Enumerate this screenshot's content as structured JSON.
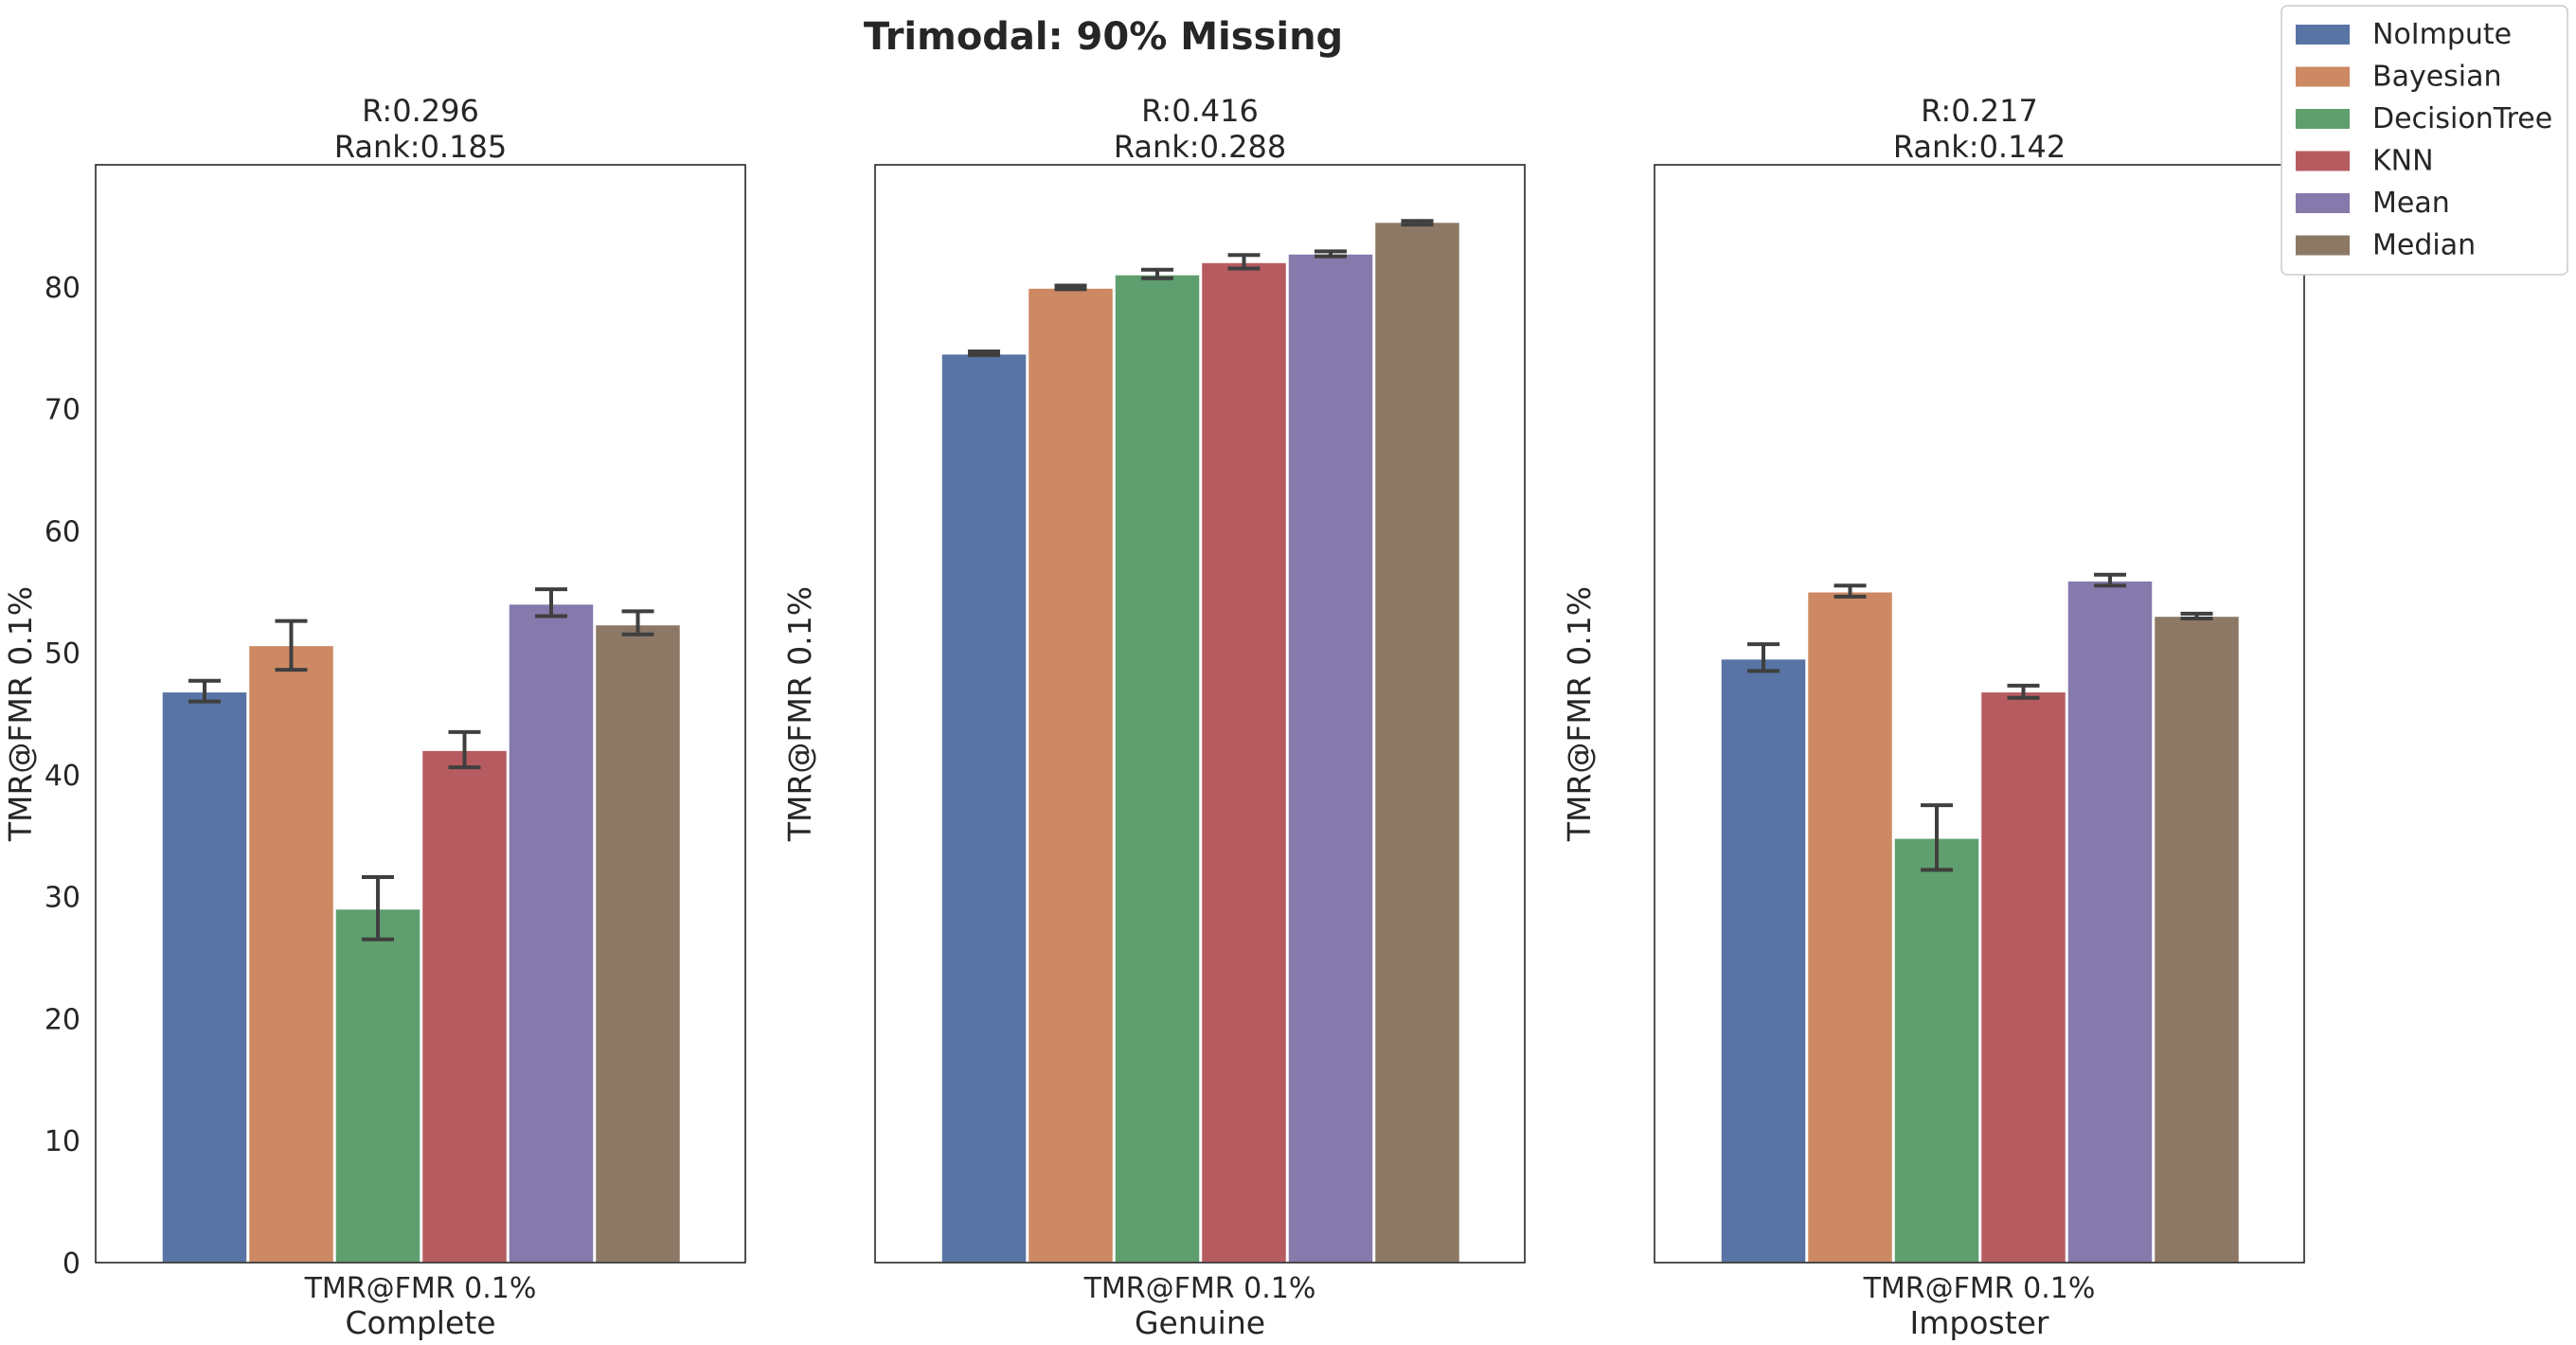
{
  "chart_data": {
    "type": "bar",
    "title": "Trimodal: 90% Missing",
    "ylabel": "TMR@FMR 0.1%",
    "xtick": "TMR@FMR 0.1%",
    "ylim": [
      0,
      90
    ],
    "yticks": [
      0,
      10,
      20,
      30,
      40,
      50,
      60,
      70,
      80
    ],
    "grid": false,
    "legend_position": "top-right",
    "series_names": [
      "NoImpute",
      "Bayesian",
      "DecisionTree",
      "KNN",
      "Mean",
      "Median"
    ],
    "colors": [
      "#5874a4",
      "#cd8963",
      "#5f9e6e",
      "#b65b60",
      "#8679ab",
      "#8d7866"
    ],
    "panels": [
      {
        "name": "Complete",
        "r_label": "R:0.296",
        "rank_label": "Rank:0.185",
        "values": [
          46.8,
          50.6,
          29.0,
          42.0,
          54.0,
          52.3
        ],
        "err_low": [
          46.0,
          48.6,
          26.5,
          40.6,
          53.0,
          51.5
        ],
        "err_high": [
          47.7,
          52.6,
          31.6,
          43.5,
          55.2,
          53.4
        ]
      },
      {
        "name": "Genuine",
        "r_label": "R:0.416",
        "rank_label": "Rank:0.288",
        "values": [
          74.5,
          79.9,
          81.0,
          82.0,
          82.7,
          85.3
        ],
        "err_low": [
          74.4,
          79.8,
          80.7,
          81.5,
          82.5,
          85.1
        ],
        "err_high": [
          74.7,
          80.1,
          81.4,
          82.6,
          82.9,
          85.4
        ]
      },
      {
        "name": "Imposter",
        "r_label": "R:0.217",
        "rank_label": "Rank:0.142",
        "values": [
          49.5,
          55.0,
          34.8,
          46.8,
          55.9,
          53.0
        ],
        "err_low": [
          48.5,
          54.6,
          32.2,
          46.3,
          55.5,
          52.8
        ],
        "err_high": [
          50.7,
          55.5,
          37.5,
          47.3,
          56.4,
          53.2
        ]
      }
    ]
  }
}
